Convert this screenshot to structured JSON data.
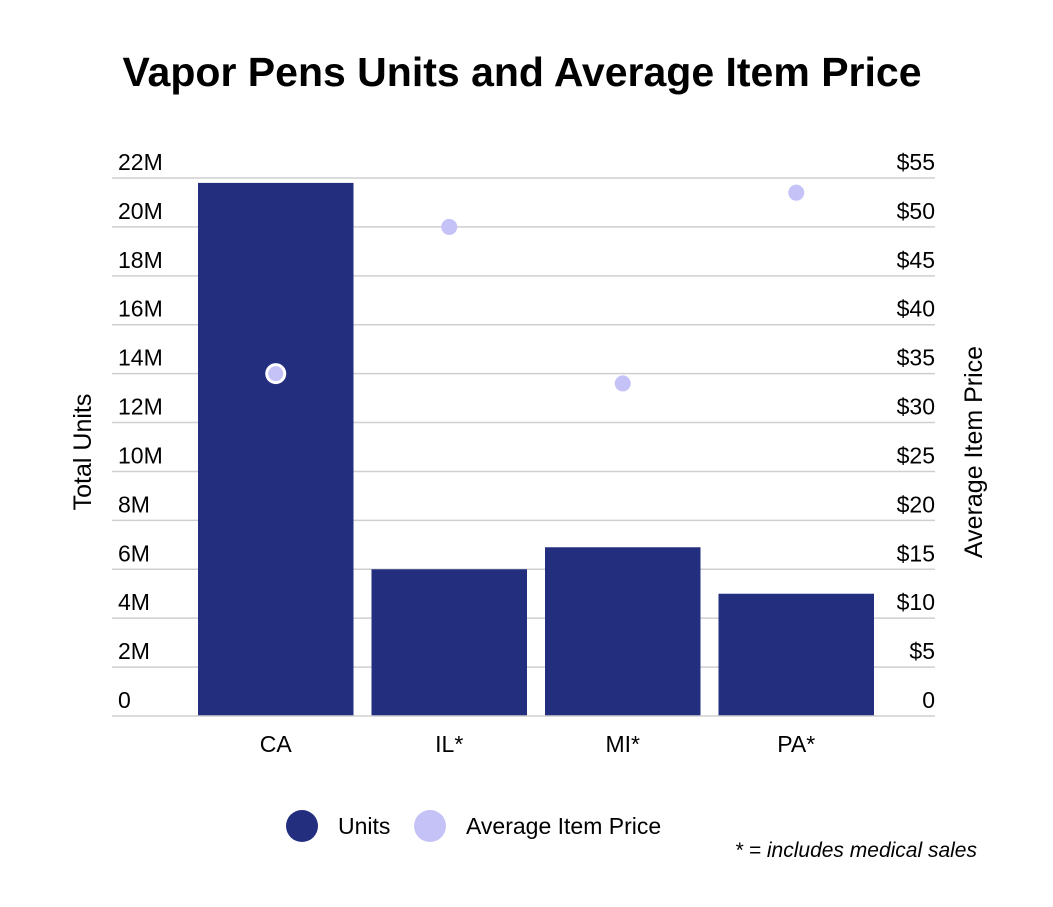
{
  "chart_data": {
    "type": "bar",
    "title": "Vapor Pens Units and Average Item Price",
    "categories": [
      "CA",
      "IL*",
      "MI*",
      "PA*"
    ],
    "series": [
      {
        "name": "Units",
        "kind": "bar",
        "axis": "left",
        "color": "#242e7f",
        "values": [
          21800000,
          6000000,
          6900000,
          5000000
        ]
      },
      {
        "name": "Average Item Price",
        "kind": "scatter",
        "axis": "right",
        "color": "#c5c2f8",
        "values": [
          35,
          50,
          34,
          53.5
        ]
      }
    ],
    "ylabel": "Total Units",
    "ylabel_right": "Average Item Price",
    "ylim": [
      0,
      22000000
    ],
    "ylim_right": [
      0,
      55
    ],
    "yticks": [
      "0",
      "2M",
      "4M",
      "6M",
      "8M",
      "10M",
      "12M",
      "14M",
      "16M",
      "18M",
      "20M",
      "22M"
    ],
    "yticks_right": [
      "0",
      "$5",
      "$10",
      "$15",
      "$20",
      "$25",
      "$30",
      "$35",
      "$40",
      "$45",
      "$50",
      "$55"
    ],
    "grid": true,
    "legend": {
      "position": "bottom-center",
      "entries": [
        "Units",
        "Average Item Price"
      ]
    },
    "footnote": "* = includes medical sales"
  }
}
